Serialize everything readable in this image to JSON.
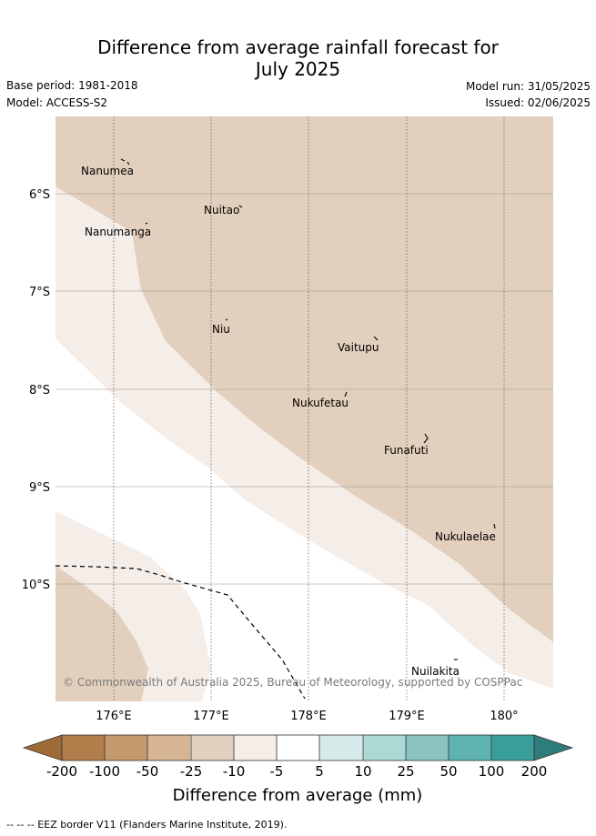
{
  "header": {
    "title_line1": "Difference from average rainfall forecast for",
    "title_line2": "July 2025",
    "base_period": "Base period: 1981-2018",
    "model": "Model: ACCESS-S2",
    "model_run": "Model run: 31/05/2025",
    "issued": "Issued: 02/06/2025"
  },
  "map": {
    "lat_labels": [
      "6°S",
      "7°S",
      "8°S",
      "9°S",
      "10°S"
    ],
    "lon_labels": [
      "176°E",
      "177°E",
      "178°E",
      "179°E",
      "180°"
    ],
    "places": [
      "Nanumea",
      "Nuitao",
      "Nanumanga",
      "Niu",
      "Vaitupu",
      "Nukufetau",
      "Funafuti",
      "Nukulaelae",
      "Nuilakita"
    ],
    "copyright": "© Commonwealth of Australia 2025, Bureau of Meteorology, supported by COSPPac",
    "fill_colors": {
      "m25_m10": "#e3cfbd",
      "m10_m5": "#f4ede8",
      "m5_5": "#ffffff"
    }
  },
  "colorbar": {
    "tick_labels": [
      "-200",
      "-100",
      "-50",
      "-25",
      "-10",
      "-5",
      "5",
      "10",
      "25",
      "50",
      "100",
      "200"
    ],
    "colors": [
      "#9e6a38",
      "#b17d4a",
      "#c59b6d",
      "#d6b595",
      "#e3cfbd",
      "#f4ede8",
      "#ffffff",
      "#d4ebea",
      "#acd8d6",
      "#8ac2c0",
      "#5eb2af",
      "#3a9e9a",
      "#2e7d7b"
    ],
    "title": "Difference from average (mm)"
  },
  "footer": {
    "eez": "-- -- -- EEZ border V11 (Flanders Marine Institute, 2019)."
  }
}
